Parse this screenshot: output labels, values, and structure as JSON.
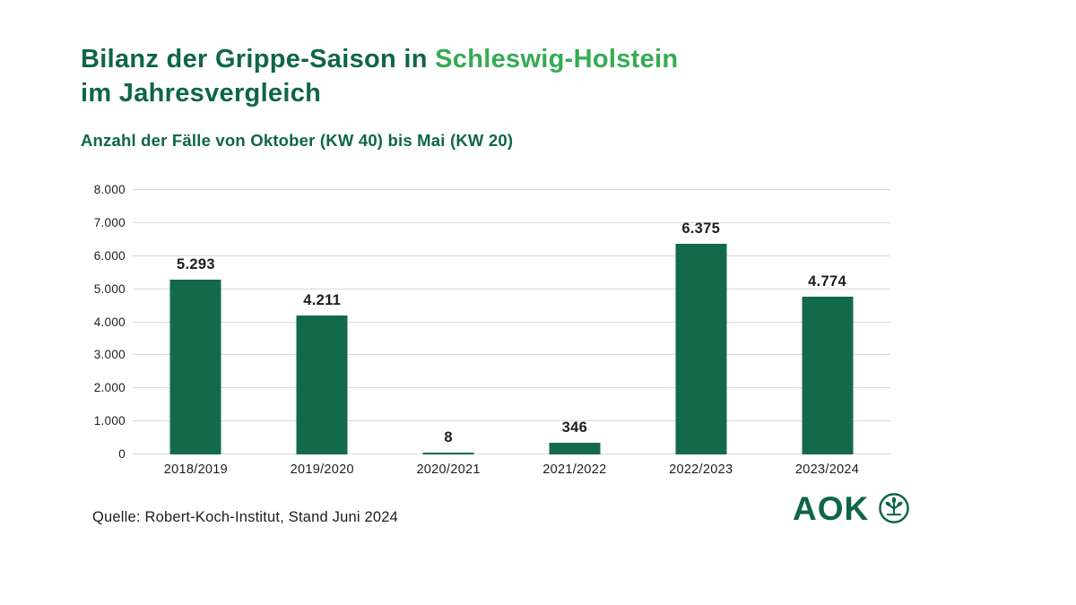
{
  "header": {
    "title": {
      "prefix": "Bilanz der Grippe-Saison in ",
      "highlight": "Schleswig-Holstein",
      "line2": "im Jahresvergleich"
    },
    "subtitle": "Anzahl der Fälle von Oktober (KW 40) bis Mai (KW 20)"
  },
  "chart_data": {
    "type": "bar",
    "title": "Bilanz der Grippe-Saison in Schleswig-Holstein im Jahresvergleich",
    "subtitle": "Anzahl der Fälle von Oktober (KW 40) bis Mai (KW 20)",
    "categories": [
      "2018/2019",
      "2019/2020",
      "2020/2021",
      "2021/2022",
      "2022/2023",
      "2023/2024"
    ],
    "values": [
      5293,
      4211,
      8,
      346,
      6375,
      4774
    ],
    "value_labels": [
      "5.293",
      "4.211",
      "8",
      "346",
      "6.375",
      "4.774"
    ],
    "xlabel": "",
    "ylabel": "",
    "ylim": [
      0,
      8000
    ],
    "ytick_interval": 1000,
    "ytick_labels": [
      "0",
      "1.000",
      "2.000",
      "3.000",
      "4.000",
      "5.000",
      "6.000",
      "7.000",
      "8.000"
    ],
    "grid": "horizontal",
    "legend": "none"
  },
  "footer": {
    "source": "Quelle: Robert-Koch-Institut, Stand Juni 2024",
    "logo": {
      "text": "AOK",
      "icon": "aok-tree-of-life-icon"
    }
  },
  "colors": {
    "dark_green": "#0e6647",
    "light_green": "#35ab53",
    "bar_green": "#136a4b",
    "grid_gray": "#d9d9d9",
    "text_dark": "#1d1d1b"
  }
}
